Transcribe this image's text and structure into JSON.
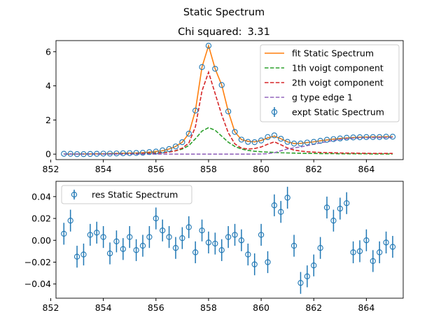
{
  "figure": {
    "suptitle": "Static Spectrum",
    "chi_label": "Chi squared:",
    "chi_value": "3.31"
  },
  "colors": {
    "fit": "#ff7f0e",
    "comp1": "#2ca02c",
    "comp2": "#d62728",
    "edge": "#9467bd",
    "points": "#1f77b4"
  },
  "chart_data": [
    {
      "type": "line",
      "title": "Chi squared:  3.31",
      "xlim": [
        852.2,
        865.4
      ],
      "ylim": [
        -0.32,
        6.65
      ],
      "x_ticks": [
        852,
        854,
        856,
        858,
        860,
        862,
        864
      ],
      "y_ticks": [
        0,
        2,
        4,
        6
      ],
      "x": [
        852.5,
        852.75,
        853.0,
        853.25,
        853.5,
        853.75,
        854.0,
        854.25,
        854.5,
        854.75,
        855.0,
        855.25,
        855.5,
        855.75,
        856.0,
        856.25,
        856.5,
        856.75,
        857.0,
        857.25,
        857.5,
        857.75,
        858.0,
        858.25,
        858.5,
        858.75,
        859.0,
        859.25,
        859.5,
        859.75,
        860.0,
        860.25,
        860.5,
        860.75,
        861.0,
        861.25,
        861.5,
        861.75,
        862.0,
        862.25,
        862.5,
        862.75,
        863.0,
        863.25,
        863.5,
        863.75,
        864.0,
        864.25,
        864.5,
        864.75,
        865.0
      ],
      "series": [
        {
          "name": "fit Static Spectrum",
          "kind": "line",
          "values": [
            0.0,
            0.0,
            0.0,
            0.01,
            0.01,
            0.02,
            0.02,
            0.03,
            0.04,
            0.05,
            0.06,
            0.07,
            0.09,
            0.12,
            0.16,
            0.2,
            0.3,
            0.45,
            0.7,
            1.2,
            2.55,
            5.1,
            6.35,
            5.0,
            4.05,
            2.5,
            1.3,
            0.85,
            0.75,
            0.72,
            0.8,
            0.95,
            1.05,
            0.9,
            0.72,
            0.62,
            0.63,
            0.68,
            0.72,
            0.78,
            0.83,
            0.88,
            0.92,
            0.95,
            0.97,
            0.99,
            1.0,
            1.01,
            1.01,
            1.02,
            1.02
          ]
        },
        {
          "name": "1th voigt component",
          "kind": "dashed",
          "values": [
            0.0,
            0.0,
            0.0,
            0.01,
            0.01,
            0.01,
            0.01,
            0.02,
            0.02,
            0.03,
            0.03,
            0.04,
            0.05,
            0.06,
            0.08,
            0.1,
            0.14,
            0.2,
            0.3,
            0.5,
            0.9,
            1.35,
            1.55,
            1.4,
            1.05,
            0.7,
            0.45,
            0.3,
            0.22,
            0.17,
            0.14,
            0.12,
            0.1,
            0.08,
            0.07,
            0.06,
            0.05,
            0.04,
            0.04,
            0.03,
            0.03,
            0.03,
            0.02,
            0.02,
            0.02,
            0.02,
            0.02,
            0.01,
            0.01,
            0.01,
            0.01
          ]
        },
        {
          "name": "2th voigt component",
          "kind": "dashed",
          "values": [
            0.0,
            0.0,
            0.0,
            0.0,
            0.01,
            0.01,
            0.01,
            0.01,
            0.02,
            0.02,
            0.03,
            0.03,
            0.04,
            0.05,
            0.06,
            0.08,
            0.12,
            0.2,
            0.35,
            0.65,
            1.6,
            3.7,
            4.8,
            3.55,
            2.3,
            1.25,
            0.6,
            0.35,
            0.3,
            0.33,
            0.42,
            0.58,
            0.72,
            0.55,
            0.36,
            0.24,
            0.18,
            0.14,
            0.12,
            0.1,
            0.09,
            0.08,
            0.07,
            0.06,
            0.06,
            0.05,
            0.05,
            0.04,
            0.04,
            0.04,
            0.04
          ]
        },
        {
          "name": "g type edge 1",
          "kind": "dashed",
          "values": [
            0.0,
            0.0,
            0.0,
            0.0,
            0.0,
            0.0,
            0.0,
            0.0,
            0.0,
            0.0,
            0.0,
            0.0,
            0.0,
            0.0,
            0.0,
            0.0,
            0.0,
            0.0,
            0.0,
            0.0,
            0.0,
            0.0,
            0.0,
            0.0,
            0.0,
            0.0,
            0.0,
            0.0,
            0.0,
            0.0,
            0.01,
            0.03,
            0.08,
            0.2,
            0.3,
            0.37,
            0.42,
            0.5,
            0.58,
            0.66,
            0.73,
            0.8,
            0.86,
            0.9,
            0.93,
            0.95,
            0.96,
            0.97,
            0.97,
            0.97,
            0.98
          ]
        },
        {
          "name": "expt Static Spectrum",
          "kind": "errorbar",
          "values": [
            0.02,
            0.02,
            0.0,
            0.0,
            0.01,
            0.02,
            0.03,
            0.03,
            0.04,
            0.05,
            0.06,
            0.07,
            0.08,
            0.12,
            0.15,
            0.22,
            0.3,
            0.45,
            0.7,
            1.2,
            2.55,
            5.1,
            6.35,
            5.0,
            4.05,
            2.5,
            1.3,
            0.85,
            0.72,
            0.7,
            0.8,
            1.0,
            1.1,
            0.9,
            0.72,
            0.62,
            0.62,
            0.68,
            0.72,
            0.78,
            0.84,
            0.88,
            0.92,
            0.96,
            0.98,
            0.99,
            1.0,
            1.0,
            1.0,
            1.02,
            1.02
          ],
          "errors": [
            0.01,
            0.01,
            0.01,
            0.01,
            0.01,
            0.01,
            0.01,
            0.01,
            0.01,
            0.01,
            0.01,
            0.01,
            0.01,
            0.01,
            0.01,
            0.01,
            0.01,
            0.01,
            0.01,
            0.01,
            0.01,
            0.01,
            0.01,
            0.01,
            0.01,
            0.01,
            0.01,
            0.01,
            0.01,
            0.01,
            0.01,
            0.01,
            0.01,
            0.01,
            0.01,
            0.01,
            0.01,
            0.01,
            0.01,
            0.01,
            0.01,
            0.01,
            0.01,
            0.01,
            0.01,
            0.01,
            0.01,
            0.01,
            0.01,
            0.01,
            0.01
          ]
        }
      ],
      "legend": "top-right"
    },
    {
      "type": "scatter",
      "xlim": [
        852.2,
        865.4
      ],
      "ylim": [
        -0.053,
        0.054
      ],
      "x_ticks": [
        852,
        854,
        856,
        858,
        860,
        862,
        864
      ],
      "y_ticks": [
        -0.04,
        -0.02,
        0.0,
        0.02,
        0.04
      ],
      "y_tick_labels": [
        "−0.04",
        "−0.02",
        "0.00",
        "0.02",
        "0.04"
      ],
      "x": [
        852.5,
        852.75,
        853.0,
        853.25,
        853.5,
        853.75,
        854.0,
        854.25,
        854.5,
        854.75,
        855.0,
        855.25,
        855.5,
        855.75,
        856.0,
        856.25,
        856.5,
        856.75,
        857.0,
        857.25,
        857.5,
        857.75,
        858.0,
        858.25,
        858.5,
        858.75,
        859.0,
        859.25,
        859.5,
        859.75,
        860.0,
        860.25,
        860.5,
        860.75,
        861.0,
        861.25,
        861.5,
        861.75,
        862.0,
        862.25,
        862.5,
        862.75,
        863.0,
        863.25,
        863.5,
        863.75,
        864.0,
        864.25,
        864.5,
        864.75,
        865.0
      ],
      "series": [
        {
          "name": "res Static Spectrum",
          "kind": "errorbar",
          "values": [
            0.006,
            0.018,
            -0.015,
            -0.013,
            0.005,
            0.007,
            0.003,
            -0.012,
            -0.001,
            -0.008,
            0.003,
            -0.009,
            -0.005,
            0.003,
            0.02,
            0.009,
            0.003,
            -0.007,
            0.002,
            0.012,
            -0.011,
            0.009,
            -0.002,
            -0.003,
            -0.009,
            0.003,
            0.005,
            0.0,
            -0.013,
            -0.022,
            0.005,
            -0.02,
            0.032,
            0.026,
            0.039,
            -0.005,
            -0.039,
            -0.033,
            -0.023,
            -0.007,
            0.03,
            0.018,
            0.029,
            0.034,
            -0.011,
            -0.01,
            0.0,
            -0.019,
            -0.011,
            -0.002,
            -0.006
          ],
          "errors": [
            0.01,
            0.01,
            0.01,
            0.01,
            0.01,
            0.01,
            0.01,
            0.01,
            0.01,
            0.01,
            0.01,
            0.01,
            0.01,
            0.01,
            0.01,
            0.01,
            0.01,
            0.01,
            0.01,
            0.01,
            0.01,
            0.01,
            0.01,
            0.01,
            0.01,
            0.01,
            0.01,
            0.01,
            0.01,
            0.01,
            0.01,
            0.01,
            0.01,
            0.01,
            0.01,
            0.01,
            0.01,
            0.01,
            0.01,
            0.01,
            0.01,
            0.01,
            0.01,
            0.01,
            0.01,
            0.01,
            0.01,
            0.01,
            0.01,
            0.01,
            0.01
          ]
        }
      ],
      "legend": "top-left"
    }
  ]
}
